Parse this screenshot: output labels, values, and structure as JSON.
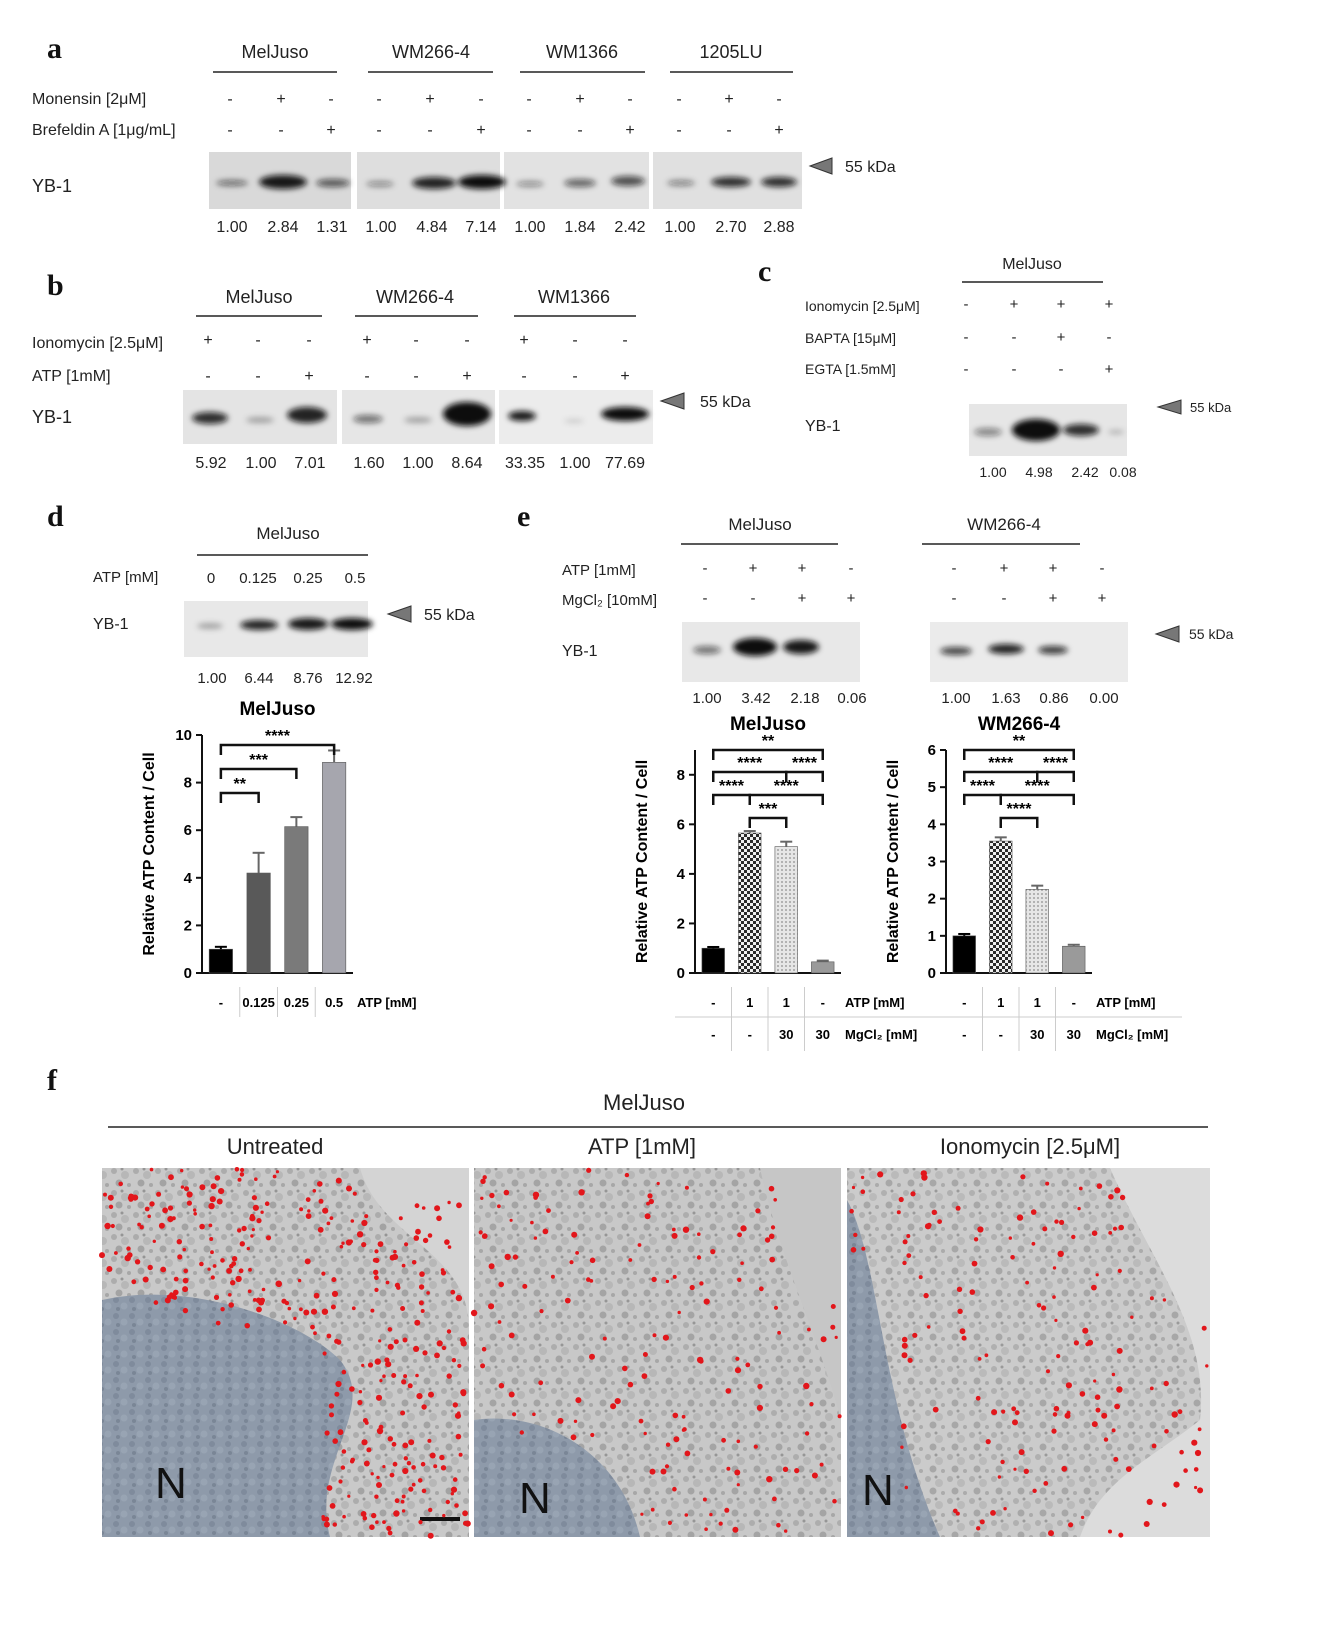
{
  "panel_letters": {
    "a": "a",
    "b": "b",
    "c": "c",
    "d": "d",
    "e": "e",
    "f": "f"
  },
  "common": {
    "yb1": "YB-1",
    "kda": "55 kDa",
    "minus": "-",
    "plus": "+"
  },
  "panel_a": {
    "cell_lines": [
      "MelJuso",
      "WM266-4",
      "WM1366",
      "1205LU"
    ],
    "rows": [
      {
        "label": "Monensin [2μM]",
        "values": [
          "-",
          "+",
          "-",
          "-",
          "+",
          "-",
          "-",
          "+",
          "-",
          "-",
          "+",
          "-"
        ]
      },
      {
        "label": "Brefeldin A [1μg/mL]",
        "values": [
          "-",
          "-",
          "+",
          "-",
          "-",
          "+",
          "-",
          "-",
          "+",
          "-",
          "-",
          "+"
        ]
      }
    ],
    "quant": [
      "1.00",
      "2.84",
      "1.31",
      "1.00",
      "4.84",
      "7.14",
      "1.00",
      "1.84",
      "2.42",
      "1.00",
      "2.70",
      "2.88"
    ]
  },
  "panel_b": {
    "cell_lines": [
      "MelJuso",
      "WM266-4",
      "WM1366"
    ],
    "rows": [
      {
        "label": "Ionomycin [2.5μM]",
        "values": [
          "+",
          "-",
          "-",
          "+",
          "-",
          "-",
          "+",
          "-",
          "-"
        ]
      },
      {
        "label": "ATP [1mM]",
        "values": [
          "-",
          "-",
          "+",
          "-",
          "-",
          "+",
          "-",
          "-",
          "+"
        ]
      }
    ],
    "quant": [
      "5.92",
      "1.00",
      "7.01",
      "1.60",
      "1.00",
      "8.64",
      "33.35",
      "1.00",
      "77.69"
    ]
  },
  "panel_c": {
    "cell_line": "MelJuso",
    "rows": [
      {
        "label": "Ionomycin [2.5μM]",
        "values": [
          "-",
          "+",
          "+",
          "+"
        ]
      },
      {
        "label": "BAPTA [15μM]",
        "values": [
          "-",
          "-",
          "+",
          "-"
        ]
      },
      {
        "label": "EGTA [1.5mM]",
        "values": [
          "-",
          "-",
          "-",
          "+"
        ]
      }
    ],
    "quant": [
      "1.00",
      "4.98",
      "2.42",
      "0.08"
    ]
  },
  "panel_d": {
    "cell_line": "MelJuso",
    "row_label": "ATP [mM]",
    "conc": [
      "0",
      "0.125",
      "0.25",
      "0.5"
    ],
    "quant": [
      "1.00",
      "6.44",
      "8.76",
      "12.92"
    ]
  },
  "panel_e": {
    "cell_lines": [
      "MelJuso",
      "WM266-4"
    ],
    "rows": [
      {
        "label": "ATP [1mM]",
        "values": [
          "-",
          "+",
          "+",
          "-"
        ]
      },
      {
        "label": "MgCl₂ [10mM]",
        "values": [
          "-",
          "-",
          "+",
          "+"
        ]
      }
    ],
    "quant": [
      [
        "1.00",
        "3.42",
        "2.18",
        "0.06"
      ],
      [
        "1.00",
        "1.63",
        "0.86",
        "0.00"
      ]
    ]
  },
  "chart_data": [
    {
      "type": "bar",
      "title": "MelJuso",
      "ylabel": "Relative ATP Content / Cell",
      "categories": [
        "-",
        "0.125",
        "0.25",
        "0.5"
      ],
      "category_axis_label": "ATP [mM]",
      "values": [
        1.0,
        4.2,
        6.15,
        8.85
      ],
      "errors": [
        0.1,
        0.85,
        0.4,
        0.5
      ],
      "ylim": [
        0,
        10
      ],
      "yticks": [
        0,
        2,
        4,
        6,
        8,
        10
      ],
      "colors": [
        "#000000",
        "#595959",
        "#7a7a7a",
        "#a6a6ae"
      ],
      "significance": [
        {
          "from": 0,
          "to": 1,
          "label": "**"
        },
        {
          "from": 0,
          "to": 2,
          "label": "***"
        },
        {
          "from": 0,
          "to": 3,
          "label": "****"
        }
      ]
    },
    {
      "type": "bar",
      "title": "MelJuso",
      "ylabel": "Relative ATP Content / Cell",
      "categories": [
        "-",
        "1",
        "1",
        "-"
      ],
      "categories2": [
        "-",
        "-",
        "30",
        "30"
      ],
      "category_axis_labels": [
        "ATP [mM]",
        "MgCl₂ [mM]"
      ],
      "values": [
        1.0,
        5.65,
        5.1,
        0.45
      ],
      "errors": [
        0.05,
        0.08,
        0.2,
        0.05
      ],
      "ylim": [
        0,
        9
      ],
      "yticks": [
        0,
        2,
        4,
        6,
        8
      ],
      "colors": [
        "#000000",
        "#8a8a8a",
        "#cfcfcf",
        "#9a9a9a"
      ],
      "significance": [
        {
          "from": 0,
          "to": 3,
          "label": "**"
        },
        {
          "from": 0,
          "to": 2,
          "label": "****"
        },
        {
          "from": 2,
          "to": 3,
          "label": "****"
        },
        {
          "from": 0,
          "to": 1,
          "label": "****"
        },
        {
          "from": 1,
          "to": 3,
          "label": "****"
        },
        {
          "from": 1,
          "to": 2,
          "label": "***"
        }
      ]
    },
    {
      "type": "bar",
      "title": "WM266-4",
      "ylabel": "Relative ATP Content / Cell",
      "categories": [
        "-",
        "1",
        "1",
        "-"
      ],
      "categories2": [
        "-",
        "-",
        "30",
        "30"
      ],
      "category_axis_labels": [
        "ATP [mM]",
        "MgCl₂ [mM]"
      ],
      "values": [
        1.0,
        3.55,
        2.25,
        0.72
      ],
      "errors": [
        0.05,
        0.1,
        0.1,
        0.04
      ],
      "ylim": [
        0,
        6
      ],
      "yticks": [
        0,
        1,
        2,
        3,
        4,
        5,
        6
      ],
      "colors": [
        "#000000",
        "#8a8a8a",
        "#cfcfcf",
        "#9a9a9a"
      ],
      "significance": [
        {
          "from": 0,
          "to": 3,
          "label": "**"
        },
        {
          "from": 0,
          "to": 2,
          "label": "****"
        },
        {
          "from": 2,
          "to": 3,
          "label": "****"
        },
        {
          "from": 0,
          "to": 1,
          "label": "****"
        },
        {
          "from": 1,
          "to": 3,
          "label": "****"
        },
        {
          "from": 1,
          "to": 2,
          "label": "****"
        }
      ]
    }
  ],
  "panel_f": {
    "header": "MelJuso",
    "images": [
      {
        "title": "Untreated",
        "nucleus": "N"
      },
      {
        "title": "ATP [1mM]",
        "nucleus": "N"
      },
      {
        "title": "Ionomycin [2.5μM]",
        "nucleus": "N"
      }
    ]
  }
}
